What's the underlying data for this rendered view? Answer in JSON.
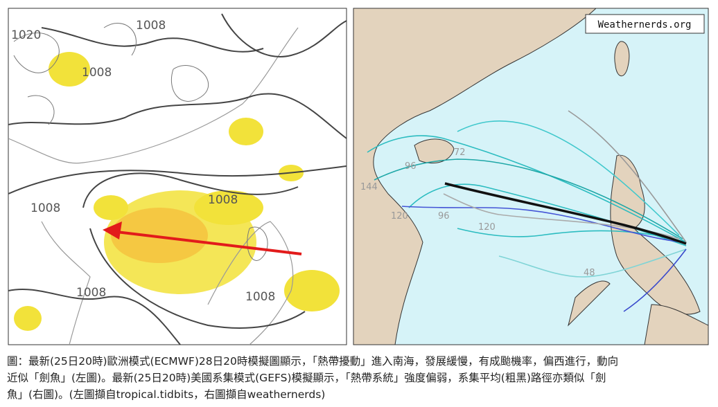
{
  "left_map": {
    "labels": [
      "1020",
      "1008",
      "1008",
      "1008",
      "1008",
      "1008",
      "1008"
    ]
  },
  "right_map": {
    "watermark": "Weathernerds.org",
    "labels": [
      "96",
      "144",
      "120",
      "96",
      "120",
      "72",
      "48"
    ]
  },
  "caption": {
    "lines": [
      "圖：最新(25日20時)歐洲模式(ECMWF)28日20時模擬圖顯示，「熱帶擾動」進入南海，發展緩慢，有成颱機率，偏西進行，動向",
      "近似「劍魚」(左圖)。最新(25日20時)美國系集模式(GEFS)模擬顯示，「熱帶系統」強度偏弱，系集平均(粗黑)路徑亦類似「劍",
      "魚」(右圖)。(左圖擷自tropical.tidbits，右圖擷自weathernerds)"
    ]
  }
}
